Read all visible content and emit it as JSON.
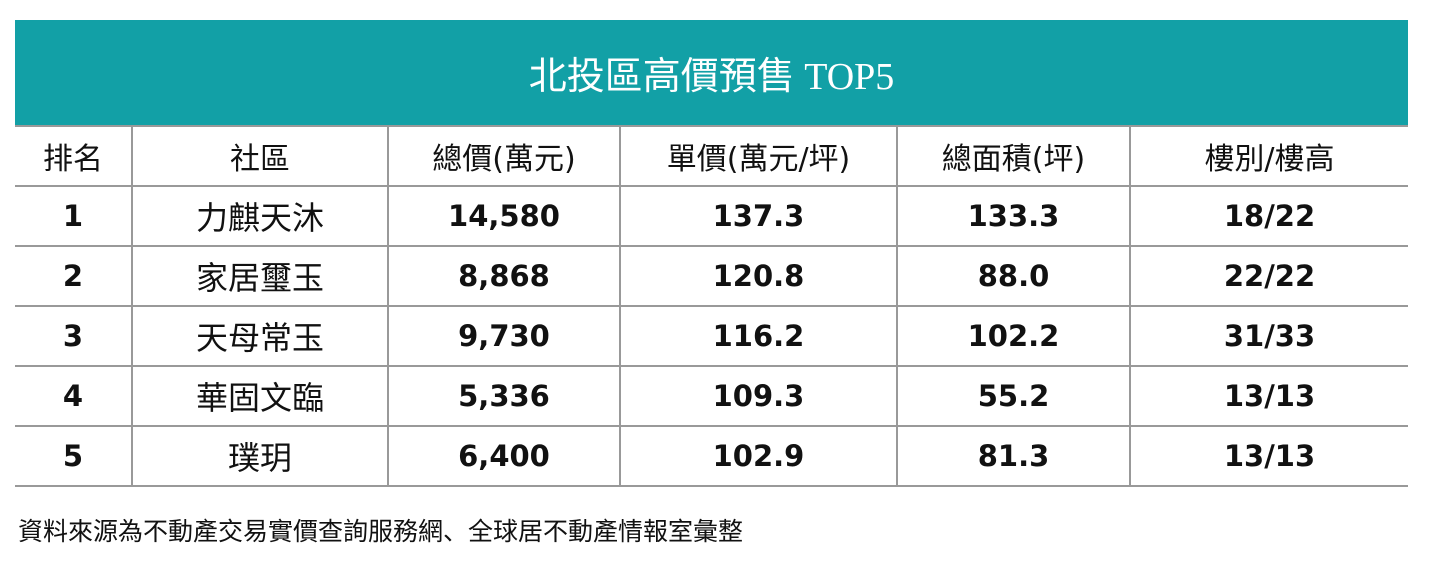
{
  "table": {
    "title": "北投區高價預售 TOP5",
    "header": [
      "排名",
      "社區",
      "總價(萬元)",
      "單價(萬元/坪)",
      "總面積(坪)",
      "樓別/樓高"
    ],
    "rows": [
      [
        "1",
        "力麒天沐",
        "14,580",
        "137.3",
        "133.3",
        "18/22"
      ],
      [
        "2",
        "家居璽玉",
        "8,868",
        "120.8",
        "88.0",
        "22/22"
      ],
      [
        "3",
        "天母常玉",
        "9,730",
        "116.2",
        "102.2",
        "31/33"
      ],
      [
        "4",
        "華固文臨",
        "5,336",
        "109.3",
        "55.2",
        "13/13"
      ],
      [
        "5",
        "璞玥",
        "6,400",
        "102.9",
        "81.3",
        "13/13"
      ]
    ]
  },
  "footer": "資料來源為不動產交易實價查詢服務網、全球居不動產情報室彙整"
}
